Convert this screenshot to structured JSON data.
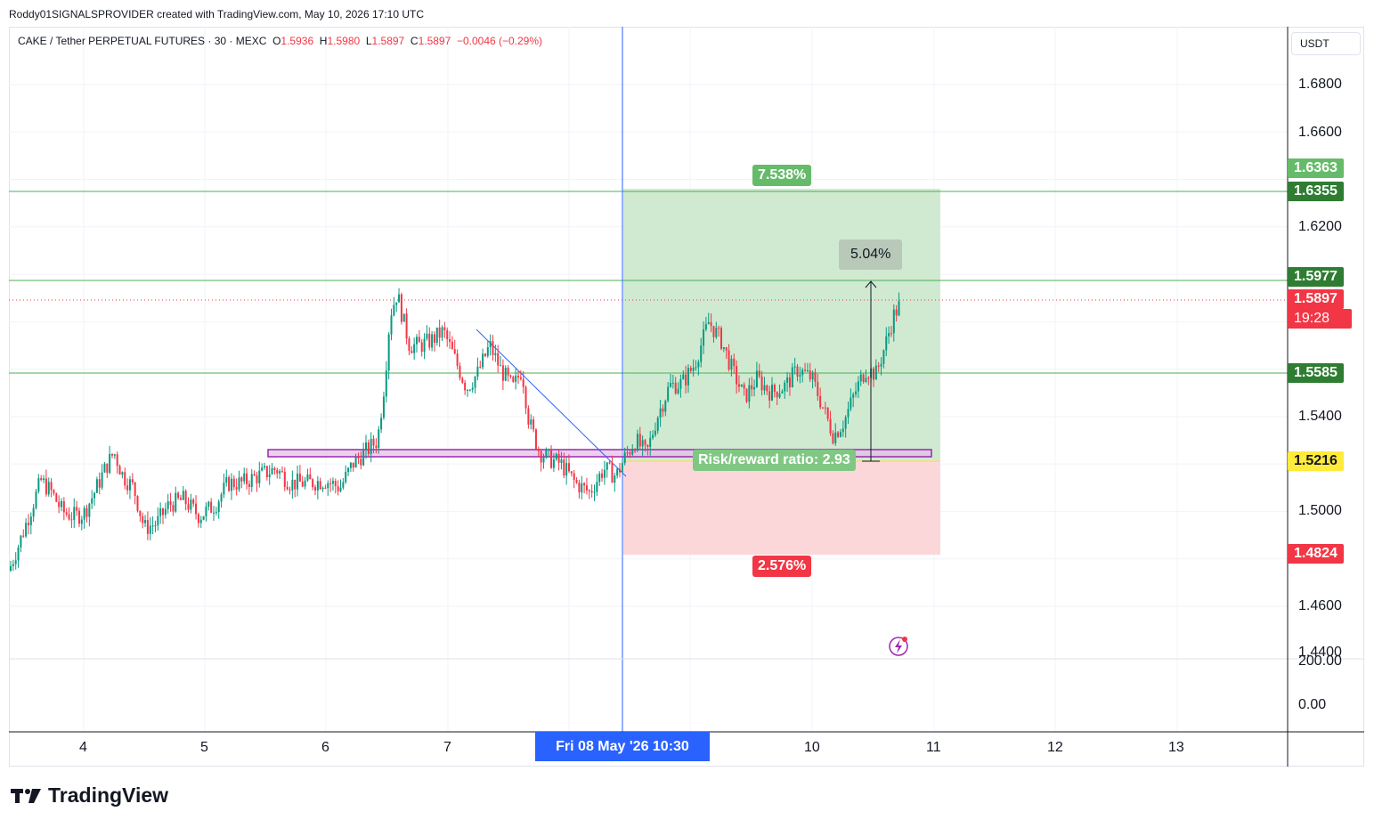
{
  "header": {
    "attribution": "Roddy01SIGNALSPROVIDER created with TradingView.com, May 10, 2026 17:10 UTC"
  },
  "legend": {
    "symbol": "CAKE / Tether PERPETUAL FUTURES · 30 · MEXC",
    "o_label": "O",
    "o_value": "1.5936",
    "h_label": "H",
    "h_value": "1.5980",
    "l_label": "L",
    "l_value": "1.5897",
    "c_label": "C",
    "c_value": "1.5897",
    "change": "−0.0046 (−0.29%)"
  },
  "currency_button": "USDT",
  "price_axis": {
    "ticks": [
      "1.6800",
      "1.6600",
      "1.6200",
      "1.5400",
      "1.5000",
      "1.4600",
      "1.4400"
    ],
    "labels": [
      {
        "text": "1.6363",
        "color": "#66bb6a"
      },
      {
        "text": "1.6355",
        "color": "#2e7d32"
      },
      {
        "text": "1.5977",
        "color": "#2e7d32"
      },
      {
        "text": "1.5897",
        "color": "#f23645"
      },
      {
        "text": "19:28",
        "color": "#f23645"
      },
      {
        "text": "1.5585",
        "color": "#2e7d32"
      },
      {
        "text": "1.5216",
        "color": "#ffeb3b"
      },
      {
        "text": "1.4824",
        "color": "#f23645"
      }
    ]
  },
  "indicator_axis": {
    "ticks": [
      "200.00",
      "0.00"
    ]
  },
  "time_axis": {
    "ticks": [
      "4",
      "5",
      "6",
      "7",
      "10",
      "11",
      "12",
      "13"
    ],
    "crosshair_label": "Fri 08 May '26   10:30"
  },
  "position_tool": {
    "target_pct": "7.538%",
    "stop_pct": "2.576%",
    "risk_reward": "Risk/reward ratio: 2.93",
    "measure_pct": "5.04%",
    "colors": {
      "profit": "#c8e6c9",
      "loss": "#fcd4d7",
      "profit_label": "#66bb6a",
      "loss_label": "#f23645"
    }
  },
  "branding": {
    "logo_text": "TradingView"
  },
  "chart_data": {
    "type": "candlestick",
    "title": "CAKE / Tether PERPETUAL FUTURES · 30 · MEXC",
    "ylim": [
      1.44,
      1.7
    ],
    "x_ticks": [
      "4",
      "5",
      "6",
      "7",
      "Fri 08 May '26 10:30",
      "10",
      "11",
      "12",
      "13"
    ],
    "horizontal_levels": [
      1.6355,
      1.5977,
      1.5585
    ],
    "support_zone": [
      1.5216,
      1.525
    ],
    "last_price": 1.5897,
    "position": {
      "entry": 1.5216,
      "target": 1.6363,
      "stop": 1.4824
    },
    "series_path": [
      [
        0,
        1.475
      ],
      [
        12,
        1.487
      ],
      [
        24,
        1.5
      ],
      [
        36,
        1.513
      ],
      [
        48,
        1.508
      ],
      [
        60,
        1.5
      ],
      [
        72,
        1.498
      ],
      [
        84,
        1.499
      ],
      [
        96,
        1.508
      ],
      [
        108,
        1.518
      ],
      [
        118,
        1.525
      ],
      [
        128,
        1.515
      ],
      [
        140,
        1.51
      ],
      [
        152,
        1.493
      ],
      [
        166,
        1.495
      ],
      [
        180,
        1.503
      ],
      [
        196,
        1.505
      ],
      [
        214,
        1.498
      ],
      [
        232,
        1.503
      ],
      [
        246,
        1.512
      ],
      [
        262,
        1.512
      ],
      [
        280,
        1.515
      ],
      [
        300,
        1.518
      ],
      [
        316,
        1.512
      ],
      [
        336,
        1.512
      ],
      [
        356,
        1.513
      ],
      [
        372,
        1.51
      ],
      [
        386,
        1.52
      ],
      [
        400,
        1.525
      ],
      [
        414,
        1.53
      ],
      [
        422,
        1.555
      ],
      [
        428,
        1.583
      ],
      [
        436,
        1.592
      ],
      [
        442,
        1.582
      ],
      [
        450,
        1.57
      ],
      [
        462,
        1.57
      ],
      [
        474,
        1.572
      ],
      [
        488,
        1.576
      ],
      [
        500,
        1.565
      ],
      [
        514,
        1.552
      ],
      [
        526,
        1.558
      ],
      [
        540,
        1.57
      ],
      [
        552,
        1.56
      ],
      [
        566,
        1.552
      ],
      [
        576,
        1.56
      ],
      [
        584,
        1.538
      ],
      [
        596,
        1.525
      ],
      [
        608,
        1.522
      ],
      [
        620,
        1.52
      ],
      [
        636,
        1.512
      ],
      [
        652,
        1.508
      ],
      [
        668,
        1.518
      ],
      [
        682,
        1.515
      ],
      [
        692,
        1.523
      ],
      [
        704,
        1.53
      ],
      [
        716,
        1.524
      ],
      [
        728,
        1.54
      ],
      [
        742,
        1.553
      ],
      [
        756,
        1.554
      ],
      [
        770,
        1.562
      ],
      [
        786,
        1.58
      ],
      [
        800,
        1.572
      ],
      [
        812,
        1.56
      ],
      [
        826,
        1.548
      ],
      [
        840,
        1.556
      ],
      [
        856,
        1.55
      ],
      [
        872,
        1.553
      ],
      [
        886,
        1.56
      ],
      [
        902,
        1.556
      ],
      [
        916,
        1.542
      ],
      [
        926,
        1.532
      ],
      [
        938,
        1.538
      ],
      [
        950,
        1.55
      ],
      [
        962,
        1.56
      ],
      [
        974,
        1.558
      ],
      [
        984,
        1.57
      ],
      [
        994,
        1.583
      ],
      [
        1010,
        1.593
      ]
    ]
  }
}
